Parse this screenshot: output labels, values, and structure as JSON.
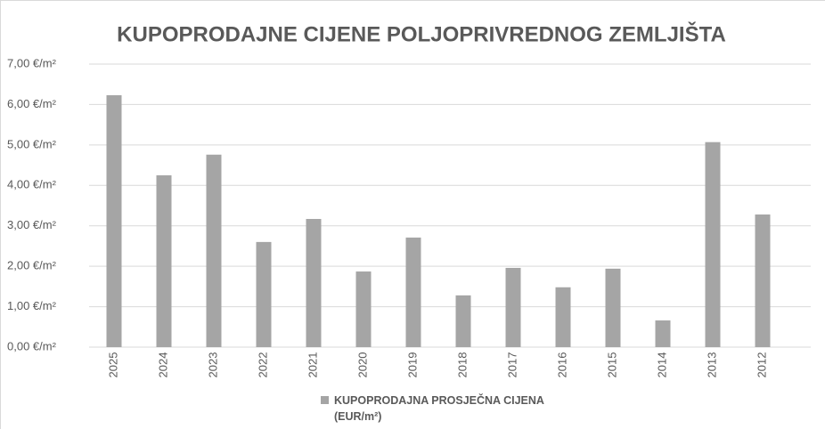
{
  "chart_data": {
    "type": "bar",
    "title": "KUPOPRODAJNE CIJENE POLJOPRIVREDNOG ZEMLJIŠTA",
    "categories": [
      "2025",
      "2024",
      "2023",
      "2022",
      "2021",
      "2020",
      "2019",
      "2018",
      "2017",
      "2016",
      "2015",
      "2014",
      "2013",
      "2012"
    ],
    "series": [
      {
        "name": "KUPOPRODAJNA PROSJEČNA CIJENA (EUR/m²)",
        "color": "#a5a5a5",
        "values": [
          6.23,
          4.25,
          4.76,
          2.6,
          3.17,
          1.87,
          2.71,
          1.28,
          1.96,
          1.48,
          1.94,
          0.66,
          5.07,
          3.28
        ]
      }
    ],
    "ylim": [
      0,
      7
    ],
    "yticks": [
      {
        "value": 0,
        "label": "0,00 €/m²"
      },
      {
        "value": 1,
        "label": "1,00 €/m²"
      },
      {
        "value": 2,
        "label": "2,00 €/m²"
      },
      {
        "value": 3,
        "label": "3,00 €/m²"
      },
      {
        "value": 4,
        "label": "4,00 €/m²"
      },
      {
        "value": 5,
        "label": "5,00 €/m²"
      },
      {
        "value": 6,
        "label": "6,00 €/m²"
      },
      {
        "value": 7,
        "label": "7,00 €/m²"
      }
    ],
    "grid": true
  }
}
